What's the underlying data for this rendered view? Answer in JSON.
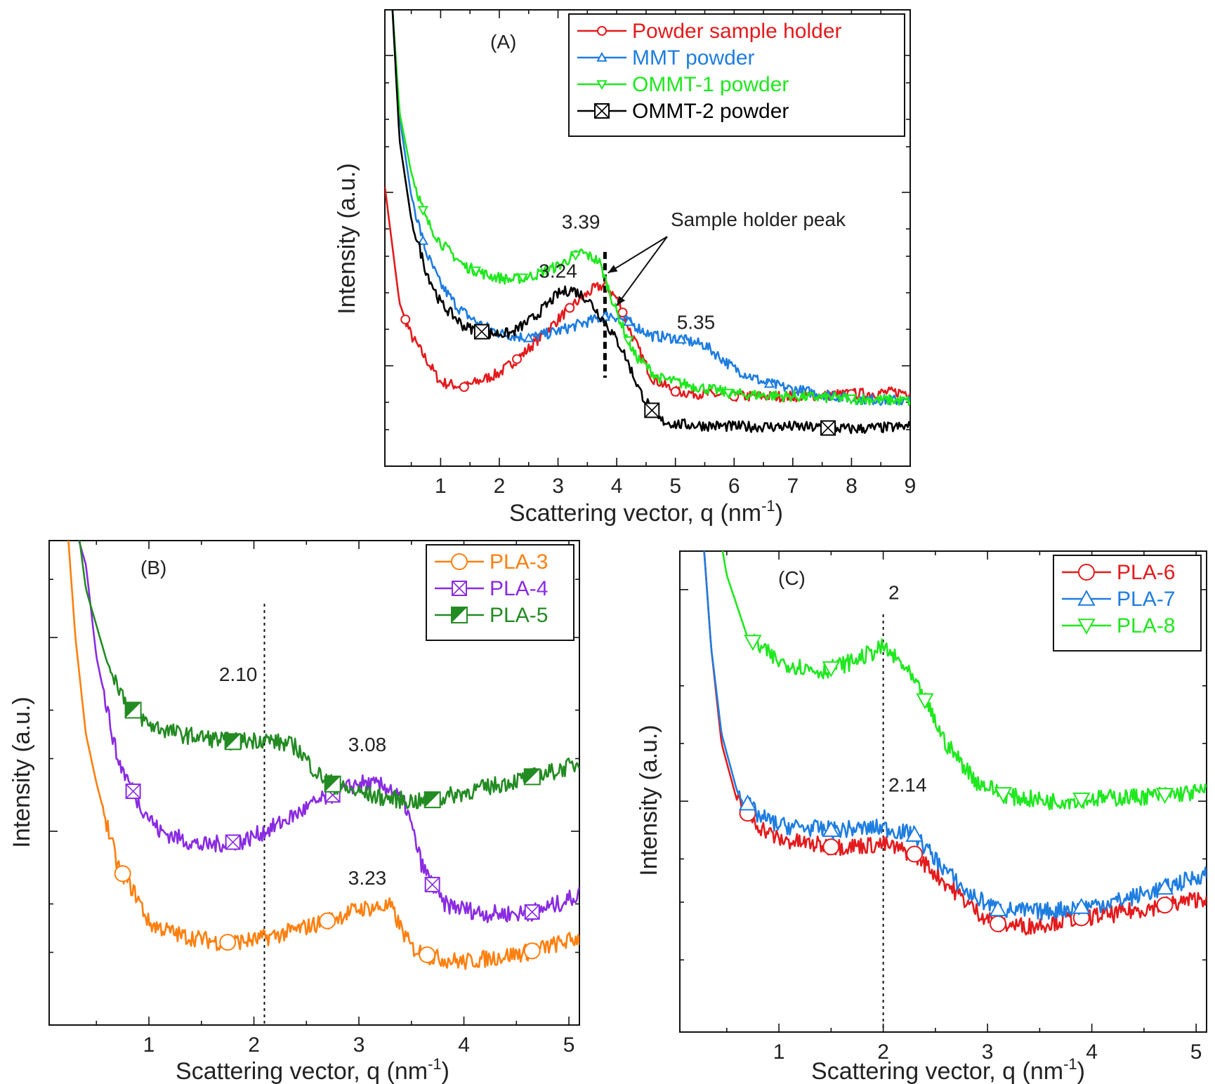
{
  "chart_data": [
    {
      "panel": "(A)",
      "type": "line",
      "xlabel": "Scattering vector, q (nm",
      "xlabel_sup": "-1",
      "xlabel_tail": ")",
      "ylabel": "Intensity (a.u.)",
      "xlim": [
        0.05,
        9
      ],
      "ylim": [
        0.3,
        1.28
      ],
      "y_scale": "log (no tick labels)",
      "x_ticks": [
        "1",
        "2",
        "3",
        "4",
        "5",
        "6",
        "7",
        "8",
        "9"
      ],
      "legend_position": "top-right",
      "series": [
        {
          "name": "Powder sample holder",
          "color": "#e41a1c",
          "marker": "circle-small",
          "points": [
            [
              0.05,
              0.9
            ],
            [
              0.15,
              0.8
            ],
            [
              0.3,
              0.65
            ],
            [
              0.5,
              0.58
            ],
            [
              0.8,
              0.52
            ],
            [
              1.0,
              0.48
            ],
            [
              1.4,
              0.47
            ],
            [
              2.0,
              0.5
            ],
            [
              2.4,
              0.54
            ],
            [
              2.8,
              0.59
            ],
            [
              3.2,
              0.64
            ],
            [
              3.6,
              0.68
            ],
            [
              3.8,
              0.69
            ],
            [
              4.0,
              0.66
            ],
            [
              4.3,
              0.57
            ],
            [
              4.6,
              0.49
            ],
            [
              5.0,
              0.46
            ],
            [
              5.5,
              0.455
            ],
            [
              6.0,
              0.45
            ],
            [
              7.0,
              0.45
            ],
            [
              8.0,
              0.455
            ],
            [
              9.0,
              0.46
            ]
          ],
          "markers_x": [
            0.4,
            1.4,
            2.3,
            3.2,
            4.1,
            5.0,
            6.0,
            7.1,
            8.0
          ]
        },
        {
          "name": "MMT powder",
          "color": "#1e7de0",
          "marker": "triangle-up-small",
          "points": [
            [
              0.18,
              1.28
            ],
            [
              0.3,
              1.05
            ],
            [
              0.5,
              0.88
            ],
            [
              0.75,
              0.76
            ],
            [
              1.0,
              0.69
            ],
            [
              1.3,
              0.64
            ],
            [
              1.6,
              0.61
            ],
            [
              2.0,
              0.585
            ],
            [
              2.5,
              0.575
            ],
            [
              3.0,
              0.59
            ],
            [
              3.5,
              0.61
            ],
            [
              3.9,
              0.625
            ],
            [
              4.2,
              0.61
            ],
            [
              4.6,
              0.58
            ],
            [
              5.0,
              0.575
            ],
            [
              5.5,
              0.56
            ],
            [
              6.0,
              0.51
            ],
            [
              6.5,
              0.48
            ],
            [
              7.0,
              0.465
            ],
            [
              8.0,
              0.445
            ],
            [
              9.0,
              0.44
            ]
          ],
          "markers_x": [
            0.7,
            2.5,
            3.8,
            4.2,
            5.1,
            6.6,
            7.7
          ]
        },
        {
          "name": "OMMT-1 powder",
          "color": "#1ee81e",
          "marker": "triangle-down-small",
          "points": [
            [
              0.18,
              1.28
            ],
            [
              0.3,
              1.06
            ],
            [
              0.5,
              0.93
            ],
            [
              0.75,
              0.83
            ],
            [
              1.0,
              0.78
            ],
            [
              1.4,
              0.73
            ],
            [
              1.8,
              0.71
            ],
            [
              2.2,
              0.7
            ],
            [
              2.6,
              0.71
            ],
            [
              3.0,
              0.73
            ],
            [
              3.39,
              0.76
            ],
            [
              3.7,
              0.74
            ],
            [
              4.0,
              0.63
            ],
            [
              4.3,
              0.54
            ],
            [
              4.7,
              0.49
            ],
            [
              5.2,
              0.475
            ],
            [
              6.0,
              0.455
            ],
            [
              7.0,
              0.45
            ],
            [
              8.0,
              0.445
            ],
            [
              9.0,
              0.44
            ]
          ],
          "markers_x": [
            0.7,
            1.6,
            2.4,
            3.3,
            4.2,
            5.9,
            8.0
          ]
        },
        {
          "name": "OMMT-2 powder",
          "color": "#000000",
          "marker": "boxed-x",
          "points": [
            [
              0.18,
              1.28
            ],
            [
              0.3,
              1.0
            ],
            [
              0.5,
              0.83
            ],
            [
              0.75,
              0.72
            ],
            [
              1.0,
              0.65
            ],
            [
              1.4,
              0.6
            ],
            [
              1.8,
              0.585
            ],
            [
              2.2,
              0.585
            ],
            [
              2.6,
              0.62
            ],
            [
              3.0,
              0.67
            ],
            [
              3.24,
              0.68
            ],
            [
              3.5,
              0.66
            ],
            [
              3.8,
              0.61
            ],
            [
              4.1,
              0.55
            ],
            [
              4.4,
              0.46
            ],
            [
              4.7,
              0.4
            ],
            [
              5.0,
              0.39
            ],
            [
              6.0,
              0.385
            ],
            [
              7.0,
              0.385
            ],
            [
              8.0,
              0.38
            ],
            [
              9.0,
              0.385
            ]
          ],
          "markers_x": [
            1.7,
            4.6,
            7.6
          ]
        }
      ],
      "annotations": [
        "3.39",
        "3.24",
        "5.35",
        "Sample holder peak",
        "(A)"
      ],
      "dashed_line_x": 3.8
    },
    {
      "panel": "(B)",
      "type": "line",
      "xlabel": "Scattering vector, q (nm",
      "xlabel_sup": "-1",
      "xlabel_tail": ")",
      "ylabel": "Intensity (a.u.)",
      "xlim": [
        0.05,
        5.1
      ],
      "ylim": [
        0,
        1
      ],
      "y_scale": "log (no tick labels)",
      "x_ticks": [
        "1",
        "2",
        "3",
        "4",
        "5"
      ],
      "legend_position": "top-right",
      "series": [
        {
          "name": "PLA-3",
          "color": "#ff7f0e",
          "marker": "circle",
          "points": [
            [
              0.2,
              1.1
            ],
            [
              0.3,
              0.8
            ],
            [
              0.4,
              0.6
            ],
            [
              0.5,
              0.5
            ],
            [
              0.7,
              0.33
            ],
            [
              0.9,
              0.26
            ],
            [
              1.0,
              0.21
            ],
            [
              1.3,
              0.185
            ],
            [
              1.7,
              0.17
            ],
            [
              2.0,
              0.175
            ],
            [
              2.3,
              0.19
            ],
            [
              2.7,
              0.215
            ],
            [
              3.0,
              0.24
            ],
            [
              3.3,
              0.245
            ],
            [
              3.4,
              0.2
            ],
            [
              3.5,
              0.16
            ],
            [
              3.7,
              0.14
            ],
            [
              4.0,
              0.13
            ],
            [
              4.3,
              0.14
            ],
            [
              4.6,
              0.15
            ],
            [
              5.1,
              0.18
            ]
          ],
          "markers_x": [
            0.75,
            1.75,
            2.7,
            3.65,
            4.65
          ]
        },
        {
          "name": "PLA-4",
          "color": "#8a2be2",
          "marker": "boxed-x",
          "points": [
            [
              0.2,
              1.1
            ],
            [
              0.4,
              0.95
            ],
            [
              0.5,
              0.76
            ],
            [
              0.7,
              0.55
            ],
            [
              0.9,
              0.46
            ],
            [
              1.1,
              0.4
            ],
            [
              1.5,
              0.37
            ],
            [
              1.9,
              0.38
            ],
            [
              2.2,
              0.41
            ],
            [
              2.6,
              0.46
            ],
            [
              3.0,
              0.5
            ],
            [
              3.3,
              0.49
            ],
            [
              3.45,
              0.45
            ],
            [
              3.6,
              0.33
            ],
            [
              3.8,
              0.25
            ],
            [
              4.2,
              0.23
            ],
            [
              4.6,
              0.23
            ],
            [
              4.9,
              0.25
            ],
            [
              5.1,
              0.27
            ]
          ],
          "markers_x": [
            0.85,
            1.8,
            2.75,
            3.7,
            4.65
          ]
        },
        {
          "name": "PLA-5",
          "color": "#228b22",
          "marker": "half-filled-square",
          "points": [
            [
              0.28,
              1.1
            ],
            [
              0.4,
              0.9
            ],
            [
              0.6,
              0.75
            ],
            [
              0.8,
              0.66
            ],
            [
              1.0,
              0.62
            ],
            [
              1.3,
              0.6
            ],
            [
              1.8,
              0.585
            ],
            [
              2.1,
              0.59
            ],
            [
              2.4,
              0.575
            ],
            [
              2.6,
              0.52
            ],
            [
              2.8,
              0.49
            ],
            [
              3.2,
              0.47
            ],
            [
              3.6,
              0.46
            ],
            [
              4.0,
              0.48
            ],
            [
              4.4,
              0.5
            ],
            [
              4.8,
              0.52
            ],
            [
              5.1,
              0.54
            ]
          ],
          "markers_x": [
            0.85,
            1.8,
            2.75,
            3.7,
            4.65
          ]
        }
      ],
      "annotations": [
        "2.10",
        "3.08",
        "3.23",
        "(B)"
      ],
      "dashed_line_x": 2.1
    },
    {
      "panel": "(C)",
      "type": "line",
      "xlabel": "Scattering vector, q (nm",
      "xlabel_sup": "-1",
      "xlabel_tail": ")",
      "ylabel": "Intensity (a.u.)",
      "xlim": [
        0.05,
        5.1
      ],
      "ylim": [
        0,
        1
      ],
      "y_scale": "log (no tick labels)",
      "x_ticks": [
        "1",
        "2",
        "3",
        "4",
        "5"
      ],
      "legend_position": "top-right",
      "series": [
        {
          "name": "PLA-6",
          "color": "#e41a1c",
          "marker": "circle",
          "points": [
            [
              0.25,
              1.1
            ],
            [
              0.35,
              0.8
            ],
            [
              0.45,
              0.6
            ],
            [
              0.6,
              0.48
            ],
            [
              0.8,
              0.43
            ],
            [
              1.0,
              0.4
            ],
            [
              1.5,
              0.385
            ],
            [
              2.0,
              0.39
            ],
            [
              2.3,
              0.37
            ],
            [
              2.6,
              0.31
            ],
            [
              2.9,
              0.25
            ],
            [
              3.1,
              0.225
            ],
            [
              3.4,
              0.22
            ],
            [
              3.8,
              0.235
            ],
            [
              4.2,
              0.245
            ],
            [
              4.6,
              0.26
            ],
            [
              5.1,
              0.28
            ]
          ],
          "markers_x": [
            0.7,
            1.5,
            2.3,
            3.1,
            3.9,
            4.7
          ]
        },
        {
          "name": "PLA-7",
          "color": "#1e7de0",
          "marker": "triangle-up",
          "points": [
            [
              0.25,
              1.1
            ],
            [
              0.35,
              0.8
            ],
            [
              0.45,
              0.62
            ],
            [
              0.6,
              0.5
            ],
            [
              0.8,
              0.45
            ],
            [
              1.0,
              0.43
            ],
            [
              1.5,
              0.42
            ],
            [
              2.0,
              0.425
            ],
            [
              2.3,
              0.41
            ],
            [
              2.5,
              0.36
            ],
            [
              2.8,
              0.29
            ],
            [
              3.1,
              0.255
            ],
            [
              3.5,
              0.25
            ],
            [
              3.9,
              0.26
            ],
            [
              4.3,
              0.275
            ],
            [
              4.7,
              0.3
            ],
            [
              5.1,
              0.33
            ]
          ],
          "markers_x": [
            0.7,
            1.5,
            2.3,
            3.1,
            3.9,
            4.7
          ]
        },
        {
          "name": "PLA-8",
          "color": "#1ee81e",
          "marker": "triangle-down",
          "points": [
            [
              0.38,
              1.1
            ],
            [
              0.5,
              0.95
            ],
            [
              0.7,
              0.82
            ],
            [
              1.0,
              0.77
            ],
            [
              1.4,
              0.75
            ],
            [
              1.7,
              0.77
            ],
            [
              2.0,
              0.8
            ],
            [
              2.2,
              0.76
            ],
            [
              2.4,
              0.69
            ],
            [
              2.6,
              0.6
            ],
            [
              2.9,
              0.52
            ],
            [
              3.2,
              0.49
            ],
            [
              3.6,
              0.48
            ],
            [
              4.0,
              0.485
            ],
            [
              4.5,
              0.49
            ],
            [
              5.1,
              0.5
            ]
          ],
          "markers_x": [
            0.75,
            1.5,
            2.4,
            3.15,
            3.9,
            4.7
          ]
        }
      ],
      "annotations": [
        "2",
        "2.14",
        "(C)"
      ],
      "dashed_line_x": 2.0
    }
  ]
}
